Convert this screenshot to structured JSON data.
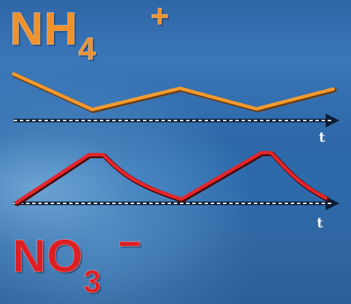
{
  "top": {
    "formula_main": "NH",
    "formula_sub": "4",
    "formula_sup": "+",
    "axis_label": "t",
    "color": "#f0922c"
  },
  "bottom": {
    "formula_main": "NO",
    "formula_sub": "3",
    "formula_sup": "−",
    "axis_label": "t",
    "color": "#dc1f24"
  },
  "axis_color": "#ffffff"
}
